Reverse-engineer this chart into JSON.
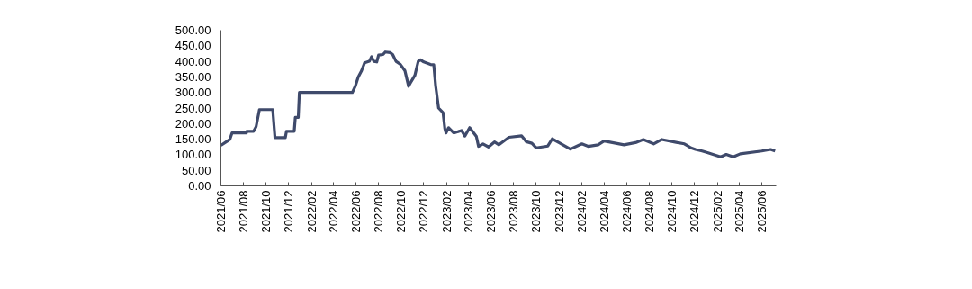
{
  "chart_data": {
    "type": "line",
    "x": [
      "2021-06-01",
      "2021-06-16",
      "2021-06-25",
      "2021-07-01",
      "2021-08-09",
      "2021-08-10",
      "2021-08-28",
      "2021-09-04",
      "2021-09-13",
      "2021-10-19",
      "2021-10-25",
      "2021-11-22",
      "2021-11-25",
      "2021-12-16",
      "2021-12-19",
      "2021-12-27",
      "2021-12-30",
      "2022-05-22",
      "2022-05-30",
      "2022-06-07",
      "2022-06-16",
      "2022-06-24",
      "2022-07-07",
      "2022-07-13",
      "2022-07-19",
      "2022-07-27",
      "2022-08-01",
      "2022-08-13",
      "2022-08-19",
      "2022-09-01",
      "2022-09-08",
      "2022-09-17",
      "2022-09-29",
      "2022-10-11",
      "2022-10-21",
      "2022-10-28",
      "2022-11-07",
      "2022-11-16",
      "2022-11-22",
      "2022-12-01",
      "2022-12-19",
      "2022-12-28",
      "2023-01-02",
      "2023-01-10",
      "2023-01-22",
      "2023-01-27",
      "2023-01-30",
      "2023-02-06",
      "2023-02-20",
      "2023-03-13",
      "2023-03-22",
      "2023-04-04",
      "2023-04-22",
      "2023-04-28",
      "2023-05-10",
      "2023-05-25",
      "2023-06-10",
      "2023-06-22",
      "2023-07-19",
      "2023-08-22",
      "2023-09-04",
      "2023-09-19",
      "2023-10-01",
      "2023-11-01",
      "2023-11-13",
      "2023-12-01",
      "2024-01-01",
      "2024-02-01",
      "2024-02-18",
      "2024-03-16",
      "2024-04-01",
      "2024-05-25",
      "2024-06-25",
      "2024-07-16",
      "2024-08-13",
      "2024-09-04",
      "2024-10-16",
      "2024-11-04",
      "2024-11-22",
      "2024-12-04",
      "2024-12-22",
      "2025-01-07",
      "2025-02-10",
      "2025-02-25",
      "2025-03-16",
      "2025-04-04",
      "2025-06-01",
      "2025-06-25",
      "2025-07-07"
    ],
    "series": [
      {
        "color": "#3f4a6b",
        "values": [
          130,
          142,
          149,
          170,
          170,
          175,
          175,
          190,
          245,
          245,
          155,
          155,
          175,
          175,
          220,
          220,
          300,
          300,
          320,
          350,
          370,
          395,
          400,
          415,
          400,
          398,
          420,
          422,
          430,
          428,
          422,
          400,
          390,
          370,
          320,
          335,
          355,
          400,
          405,
          398,
          390,
          389,
          322,
          250,
          235,
          183,
          170,
          187,
          170,
          178,
          160,
          187,
          159,
          127,
          135,
          125,
          141,
          132,
          156,
          161,
          142,
          137,
          122,
          128,
          151,
          139,
          118,
          135,
          127,
          132,
          144,
          132,
          139,
          149,
          135,
          149,
          139,
          135,
          122,
          117,
          112,
          106,
          93,
          101,
          93,
          103,
          112,
          117,
          112
        ]
      }
    ],
    "xlim": [
      "2021-06-01",
      "2025-07-10"
    ],
    "xticks": [
      {
        "value": "2021-06",
        "label": "2021/06"
      },
      {
        "value": "2021-08",
        "label": "2021/08"
      },
      {
        "value": "2021-10",
        "label": "2021/10"
      },
      {
        "value": "2021-12",
        "label": "2021/12"
      },
      {
        "value": "2022-02",
        "label": "2022/02"
      },
      {
        "value": "2022-04",
        "label": "2022/04"
      },
      {
        "value": "2022-06",
        "label": "2022/06"
      },
      {
        "value": "2022-08",
        "label": "2022/08"
      },
      {
        "value": "2022-10",
        "label": "2022/10"
      },
      {
        "value": "2022-12",
        "label": "2022/12"
      },
      {
        "value": "2023-02",
        "label": "2023/02"
      },
      {
        "value": "2023-04",
        "label": "2023/04"
      },
      {
        "value": "2023-06",
        "label": "2023/06"
      },
      {
        "value": "2023-08",
        "label": "2023/08"
      },
      {
        "value": "2023-10",
        "label": "2023/10"
      },
      {
        "value": "2023-12",
        "label": "2023/12"
      },
      {
        "value": "2024-02",
        "label": "2024/02"
      },
      {
        "value": "2024-04",
        "label": "2024/04"
      },
      {
        "value": "2024-06",
        "label": "2024/06"
      },
      {
        "value": "2024-08",
        "label": "2024/08"
      },
      {
        "value": "2024-10",
        "label": "2024/10"
      },
      {
        "value": "2024-12",
        "label": "2024/12"
      },
      {
        "value": "2025-02",
        "label": "2025/02"
      },
      {
        "value": "2025-04",
        "label": "2025/04"
      },
      {
        "value": "2025-06",
        "label": "2025/06"
      }
    ],
    "ylim": [
      0,
      500
    ],
    "yticks": [
      {
        "value": 0,
        "label": "0.00"
      },
      {
        "value": 50,
        "label": "50.00"
      },
      {
        "value": 100,
        "label": "100.00"
      },
      {
        "value": 150,
        "label": "150.00"
      },
      {
        "value": 200,
        "label": "200.00"
      },
      {
        "value": 250,
        "label": "250.00"
      },
      {
        "value": 300,
        "label": "300.00"
      },
      {
        "value": 350,
        "label": "350.00"
      },
      {
        "value": 400,
        "label": "400.00"
      },
      {
        "value": 450,
        "label": "450.00"
      },
      {
        "value": 500,
        "label": "500.00"
      }
    ],
    "grid": false,
    "marker": "none",
    "line_style": "solid"
  }
}
